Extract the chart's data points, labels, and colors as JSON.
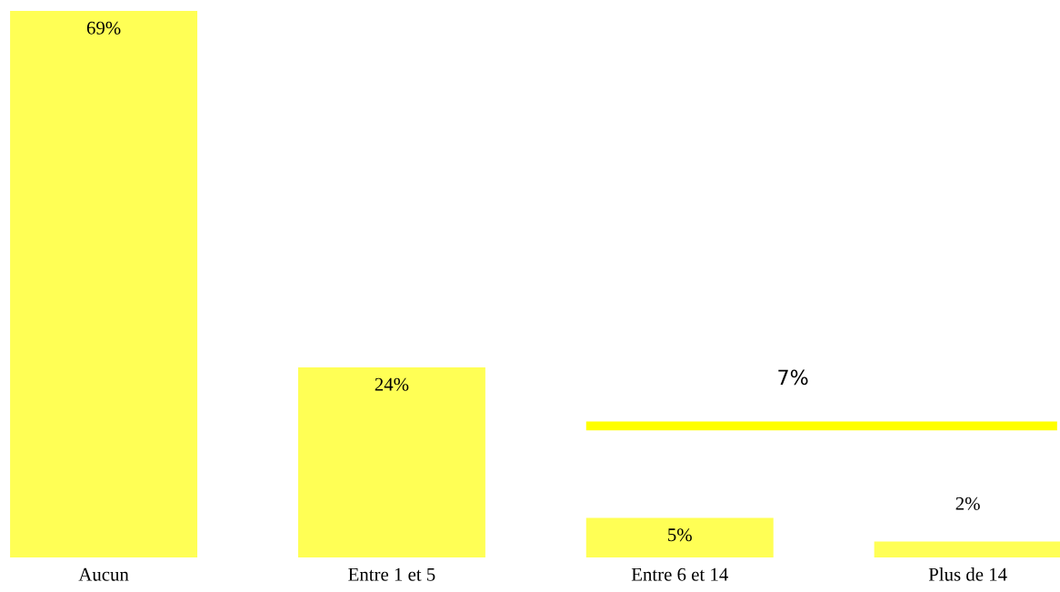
{
  "chart_data": {
    "type": "bar",
    "categories": [
      "Aucun",
      "Entre 1 et 5",
      "Entre 6 et 14",
      "Plus de 14"
    ],
    "values": [
      69,
      24,
      5,
      2
    ],
    "value_labels": [
      "69%",
      "24%",
      "5%",
      "2%"
    ],
    "color": "#ffff55",
    "ref_lines": [
      {
        "axis": "y",
        "value": 16.6,
        "color": "#ffff00"
      }
    ],
    "annotations": [
      "7%"
    ],
    "grid": false,
    "legend": false
  }
}
